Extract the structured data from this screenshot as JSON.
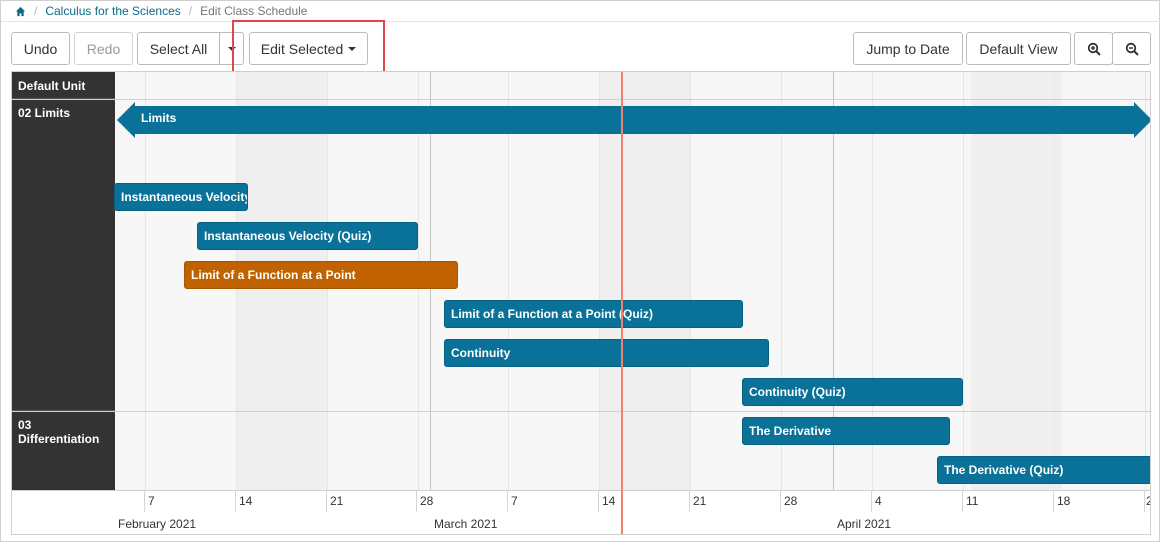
{
  "breadcrumb": {
    "home": "home",
    "course": "Calculus for the Sciences",
    "current": "Edit Class Schedule"
  },
  "toolbar": {
    "undo": "Undo",
    "redo": "Redo",
    "select_all": "Select All",
    "edit_selected": "Edit Selected",
    "jump_to_date": "Jump to Date",
    "default_view": "Default View",
    "zoom_in_icon": "zoom-in-icon",
    "zoom_out_icon": "zoom-out-icon"
  },
  "units": {
    "default": "Default Unit",
    "limits": "02 Limits",
    "differentiation": "03 Differentiation"
  },
  "unit_bar": {
    "label": "Limits"
  },
  "items": [
    {
      "label": "Instantaneous Velocity",
      "color": "#0a7298"
    },
    {
      "label": "Instantaneous Velocity (Quiz)",
      "color": "#0a7298"
    },
    {
      "label": "Limit of a Function at a Point",
      "color": "#c06200"
    },
    {
      "label": "Limit of a Function at a Point (Quiz)",
      "color": "#0a7298"
    },
    {
      "label": "Continuity",
      "color": "#0a7298"
    },
    {
      "label": "Continuity (Quiz)",
      "color": "#0a7298"
    },
    {
      "label": "The Derivative",
      "color": "#0a7298"
    },
    {
      "label": "The Derivative (Quiz)",
      "color": "#0a7298"
    }
  ],
  "axis": {
    "ticks": [
      "7",
      "14",
      "21",
      "28",
      "7",
      "14",
      "21",
      "28",
      "4",
      "11",
      "18",
      "2"
    ],
    "months": [
      "February 2021",
      "March 2021",
      "April 2021"
    ]
  },
  "colors": {
    "accent": "#0a7298",
    "warning": "#c06200",
    "today_line": "#f08070",
    "highlight": "#e0474c"
  }
}
